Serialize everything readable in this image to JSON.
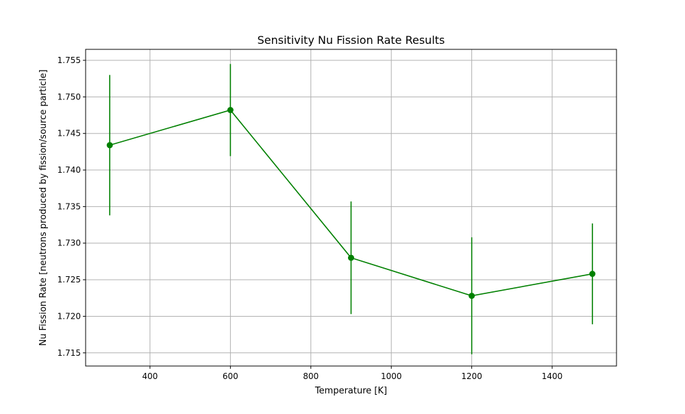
{
  "chart_data": {
    "type": "line",
    "title": "Sensitivity Nu Fission Rate Results",
    "xlabel": "Temperature [K]",
    "ylabel": "Nu Fission Rate [neutrons produced by fission/source particle]",
    "xlim": [
      240,
      1560
    ],
    "ylim": [
      1.7132,
      1.7565
    ],
    "xticks": [
      400,
      600,
      800,
      1000,
      1200,
      1400
    ],
    "xtick_labels": [
      "400",
      "600",
      "800",
      "1000",
      "1200",
      "1400"
    ],
    "yticks": [
      1.715,
      1.72,
      1.725,
      1.73,
      1.735,
      1.74,
      1.745,
      1.75,
      1.755
    ],
    "ytick_labels": [
      "1.715",
      "1.720",
      "1.725",
      "1.730",
      "1.735",
      "1.740",
      "1.745",
      "1.750",
      "1.755"
    ],
    "grid": true,
    "series": [
      {
        "color": "#008000",
        "marker": "circle",
        "x": [
          300,
          600,
          900,
          1200,
          1500
        ],
        "y": [
          1.7434,
          1.7482,
          1.728,
          1.7228,
          1.7258
        ],
        "yerr": [
          0.0096,
          0.0063,
          0.0077,
          0.008,
          0.0069
        ]
      }
    ]
  }
}
